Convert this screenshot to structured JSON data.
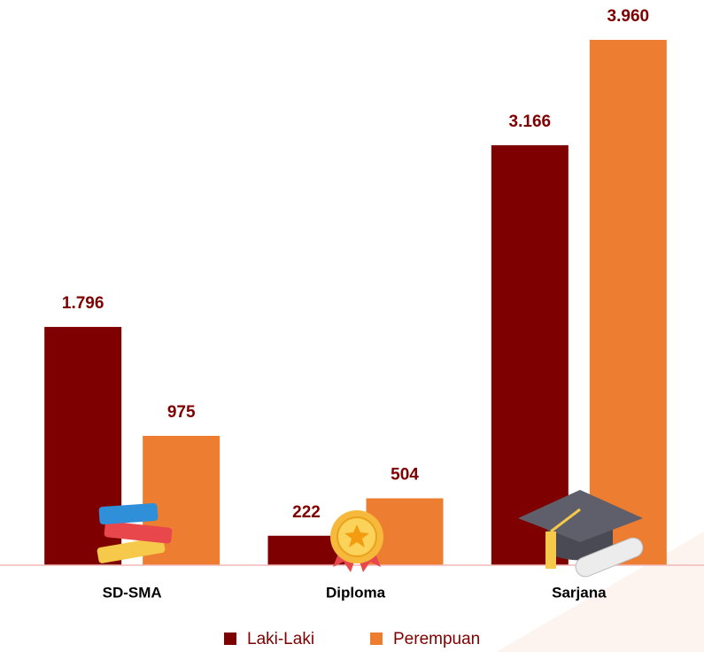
{
  "chart_data": {
    "type": "bar",
    "categories": [
      "SD-SMA",
      "Diploma",
      "Sarjana"
    ],
    "series": [
      {
        "name": "Laki-Laki",
        "color": "#7f0000",
        "values": [
          1796,
          222,
          3166
        ],
        "value_labels": [
          "1.796",
          "222",
          "3.166"
        ]
      },
      {
        "name": "Perempuan",
        "color": "#ed7d31",
        "values": [
          975,
          504,
          3960
        ],
        "value_labels": [
          "975",
          "504",
          "3.960"
        ]
      }
    ],
    "ylim": [
      0,
      4000
    ],
    "grid": false,
    "legend": "bottom"
  }
}
